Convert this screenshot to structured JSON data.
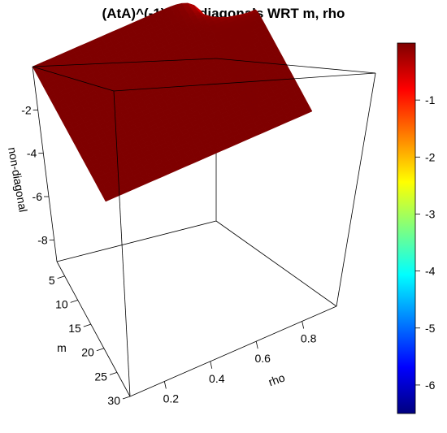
{
  "chart_data": {
    "type": "surface3d",
    "title": "(AtA)^(-1) non-diagonals WRT m, rho",
    "xlabel": "rho",
    "ylabel": "m",
    "zlabel": "non-diagonal",
    "x_ticks": [
      0.2,
      0.4,
      0.6,
      0.8
    ],
    "y_ticks": [
      5,
      10,
      15,
      20,
      25,
      30
    ],
    "z_ticks": [
      -2,
      -4,
      -6,
      -8
    ],
    "xlim": [
      0.05,
      0.95
    ],
    "ylim": [
      2,
      30
    ],
    "zlim": [
      -9,
      0
    ],
    "surface_min": -6.5,
    "surface_max": 0,
    "colorbar": {
      "ticks": [
        -1,
        -2,
        -3,
        -4,
        -5,
        -6
      ],
      "range": [
        -6.5,
        0
      ],
      "colormap": "jet",
      "colors": [
        "#00007f",
        "#0000ff",
        "#007fff",
        "#00ffff",
        "#7fff7f",
        "#ffff00",
        "#ff7f00",
        "#ff0000",
        "#7f0000"
      ]
    }
  }
}
